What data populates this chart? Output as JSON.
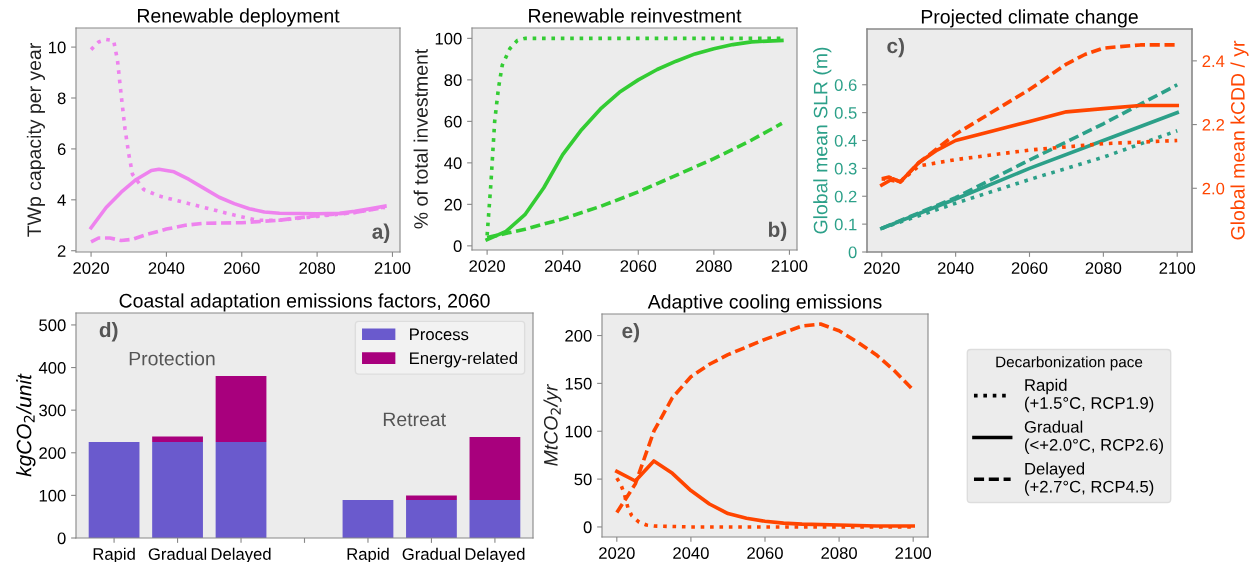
{
  "chart_data": [
    {
      "type": "line",
      "title": "Renewable deployment",
      "ylabel": "TWp capacity per year",
      "xlim": [
        2016,
        2102
      ],
      "xticks": [
        2020,
        2040,
        2060,
        2080,
        2100
      ],
      "ylim": [
        1.95,
        10.75
      ],
      "yticks": [
        2,
        4,
        6,
        8,
        10
      ],
      "annotations": [
        "a)"
      ],
      "series": [
        {
          "color": "#ee82ee",
          "line_style": "dotted",
          "x": [
            2020,
            2022,
            2024,
            2026,
            2027,
            2028,
            2029,
            2030,
            2031,
            2034,
            2038,
            2042,
            2050,
            2058,
            2064,
            2070,
            2080,
            2090,
            2098
          ],
          "values": [
            9.9,
            10.2,
            10.3,
            10.25,
            9.5,
            8.1,
            6.8,
            5.8,
            5.0,
            4.4,
            4.15,
            4.0,
            3.7,
            3.4,
            3.2,
            3.2,
            3.35,
            3.5,
            3.72
          ]
        },
        {
          "color": "#ee82ee",
          "line_style": "solid",
          "x": [
            2020,
            2024,
            2028,
            2032,
            2036,
            2038,
            2042,
            2046,
            2050,
            2054,
            2058,
            2062,
            2066,
            2070,
            2080,
            2086,
            2090,
            2094,
            2098
          ],
          "values": [
            2.9,
            3.7,
            4.3,
            4.8,
            5.15,
            5.2,
            5.1,
            4.8,
            4.45,
            4.1,
            3.85,
            3.65,
            3.52,
            3.47,
            3.45,
            3.47,
            3.55,
            3.65,
            3.75
          ]
        },
        {
          "color": "#ee82ee",
          "line_style": "dashed",
          "x": [
            2020,
            2022,
            2025,
            2028,
            2031,
            2035,
            2040,
            2045,
            2050,
            2060,
            2070,
            2080,
            2090,
            2098
          ],
          "values": [
            2.35,
            2.5,
            2.5,
            2.4,
            2.45,
            2.65,
            2.85,
            3.0,
            3.08,
            3.1,
            3.2,
            3.38,
            3.5,
            3.7
          ]
        }
      ]
    },
    {
      "type": "line",
      "title": "Renewable reinvestment",
      "ylabel": "% of total investment",
      "xlim": [
        2016,
        2102
      ],
      "xticks": [
        2020,
        2040,
        2060,
        2080,
        2100
      ],
      "ylim": [
        -2,
        105
      ],
      "yticks": [
        0,
        20,
        40,
        60,
        80,
        100
      ],
      "annotations": [
        "b)"
      ],
      "series": [
        {
          "color": "#33cc33",
          "line_style": "dotted",
          "x": [
            2020,
            2021,
            2022,
            2023,
            2024,
            2026,
            2028,
            2030,
            2098
          ],
          "values": [
            5,
            30,
            60,
            76,
            87,
            95,
            99,
            100,
            100
          ]
        },
        {
          "color": "#33cc33",
          "line_style": "solid",
          "x": [
            2020,
            2025,
            2030,
            2035,
            2040,
            2045,
            2050,
            2055,
            2060,
            2065,
            2070,
            2075,
            2080,
            2085,
            2090,
            2098
          ],
          "values": [
            3,
            7,
            15,
            28,
            44,
            56,
            66,
            74,
            80,
            85,
            89,
            92.5,
            95,
            97,
            98.3,
            99
          ]
        },
        {
          "color": "#33cc33",
          "line_style": "dashed",
          "x": [
            2020,
            2030,
            2040,
            2050,
            2060,
            2070,
            2080,
            2090,
            2098
          ],
          "values": [
            4,
            8,
            13,
            19,
            26,
            34,
            42,
            51,
            59
          ]
        }
      ]
    },
    {
      "type": "line",
      "title": "Projected climate change",
      "ylabel": "Global mean SLR (m)",
      "y2label": "Global mean kCDD / yr",
      "xlim": [
        2016,
        2104
      ],
      "xticks": [
        2020,
        2040,
        2060,
        2080,
        2100
      ],
      "ylim": [
        0,
        0.8
      ],
      "yticks": [
        0,
        0.1,
        0.2,
        0.3,
        0.4,
        0.5,
        0.6
      ],
      "y2lim": [
        1.8,
        2.5
      ],
      "y2ticks": [
        {
          "value": 2.0,
          "label": "2.0"
        },
        {
          "value": 2.2,
          "label": "2.2"
        },
        {
          "value": 2.4,
          "label": "2.4"
        }
      ],
      "annotations": [
        "c)"
      ],
      "series": [
        {
          "color": "#2ca089",
          "line_style": "dotted",
          "x": [
            2020,
            2040,
            2060,
            2080,
            2100
          ],
          "values": [
            0.085,
            0.175,
            0.26,
            0.34,
            0.435
          ]
        },
        {
          "color": "#2ca089",
          "line_style": "solid",
          "x": [
            2020,
            2040,
            2060,
            2080,
            2100
          ],
          "values": [
            0.085,
            0.19,
            0.3,
            0.4,
            0.5
          ]
        },
        {
          "color": "#2ca089",
          "line_style": "dashed",
          "x": [
            2020,
            2040,
            2060,
            2080,
            2100
          ],
          "values": [
            0.085,
            0.195,
            0.33,
            0.46,
            0.6
          ]
        },
        {
          "color": "#ff4500",
          "line_style": "dotted",
          "axis": "y2",
          "x": [
            2020,
            2025,
            2030,
            2040,
            2060,
            2080,
            2100
          ],
          "values": [
            2.03,
            2.02,
            2.07,
            2.09,
            2.12,
            2.14,
            2.15
          ]
        },
        {
          "color": "#ff4500",
          "line_style": "solid",
          "axis": "y2",
          "x": [
            2020,
            2023,
            2025,
            2030,
            2035,
            2040,
            2050,
            2060,
            2070,
            2080,
            2090,
            2100
          ],
          "values": [
            2.01,
            2.03,
            2.02,
            2.08,
            2.12,
            2.15,
            2.18,
            2.21,
            2.24,
            2.25,
            2.26,
            2.26
          ]
        },
        {
          "color": "#ff4500",
          "line_style": "dashed",
          "axis": "y2",
          "x": [
            2020,
            2022,
            2025,
            2030,
            2040,
            2050,
            2060,
            2070,
            2075,
            2080,
            2090,
            2100
          ],
          "values": [
            2.03,
            2.035,
            2.02,
            2.08,
            2.17,
            2.24,
            2.31,
            2.39,
            2.42,
            2.44,
            2.45,
            2.45
          ]
        }
      ]
    },
    {
      "type": "bar",
      "stacked": true,
      "title": "Coastal adaptation emissions factors, 2060",
      "ylabel": "kgCO$_{2}$/unit",
      "categories": [
        "Rapid",
        "Gradual",
        "Delayed",
        null,
        "Rapid",
        "Gradual",
        "Delayed"
      ],
      "ylim": [
        0,
        528
      ],
      "yticks": [
        0,
        100,
        200,
        300,
        400,
        500
      ],
      "legend": "top right",
      "annotations": [
        "d)",
        "Protection",
        "Retreat"
      ],
      "series": [
        {
          "name": "Process",
          "color": "#6a5acd",
          "values": [
            225,
            225,
            225,
            null,
            89,
            89,
            89
          ]
        },
        {
          "name": "Energy-related",
          "color": "#a8007d",
          "values": [
            0,
            13,
            155,
            null,
            0,
            11,
            148
          ]
        }
      ]
    },
    {
      "type": "line",
      "title": "Adaptive cooling emissions",
      "ylabel": "MtCO$_{2}$/yr",
      "xlim": [
        2016,
        2104
      ],
      "xticks": [
        2020,
        2040,
        2060,
        2080,
        2100
      ],
      "ylim": [
        -10.5,
        222.5
      ],
      "yticks": [
        0,
        50,
        100,
        150,
        200
      ],
      "annotations": [
        "e)"
      ],
      "series": [
        {
          "color": "#ff4500",
          "line_style": "dotted",
          "x": [
            2020,
            2021,
            2022,
            2023,
            2024,
            2026,
            2028,
            2030,
            2040,
            2100
          ],
          "values": [
            51,
            45,
            35,
            20,
            12,
            5,
            2,
            1,
            0,
            0
          ]
        },
        {
          "color": "#ff4500",
          "line_style": "solid",
          "x": [
            2020,
            2025,
            2030,
            2035,
            2040,
            2045,
            2050,
            2055,
            2060,
            2065,
            2070,
            2080,
            2090,
            2100
          ],
          "values": [
            58,
            48,
            69,
            56,
            38,
            24,
            14,
            9,
            6,
            4,
            3,
            2,
            1,
            1
          ]
        },
        {
          "color": "#ff4500",
          "line_style": "dashed",
          "x": [
            2020,
            2025,
            2030,
            2035,
            2040,
            2045,
            2050,
            2055,
            2060,
            2065,
            2070,
            2075,
            2080,
            2085,
            2090,
            2095,
            2100
          ],
          "values": [
            15,
            45,
            100,
            135,
            157,
            170,
            180,
            188,
            196,
            203,
            210,
            212,
            205,
            193,
            180,
            163,
            143
          ]
        }
      ]
    },
    {
      "type": "other",
      "legend_title": "Decarbonization pace",
      "legend": "right",
      "series": [
        {
          "name": "Rapid\n(+1.5°C, RCP1.9)",
          "color": "#000000",
          "line_style": "dotted"
        },
        {
          "name": "Gradual\n(<+2.0°C, RCP2.6)",
          "color": "#000000",
          "line_style": "solid"
        },
        {
          "name": "Delayed\n(+2.7°C, RCP4.5)",
          "color": "#000000",
          "line_style": "dashed"
        }
      ]
    }
  ]
}
